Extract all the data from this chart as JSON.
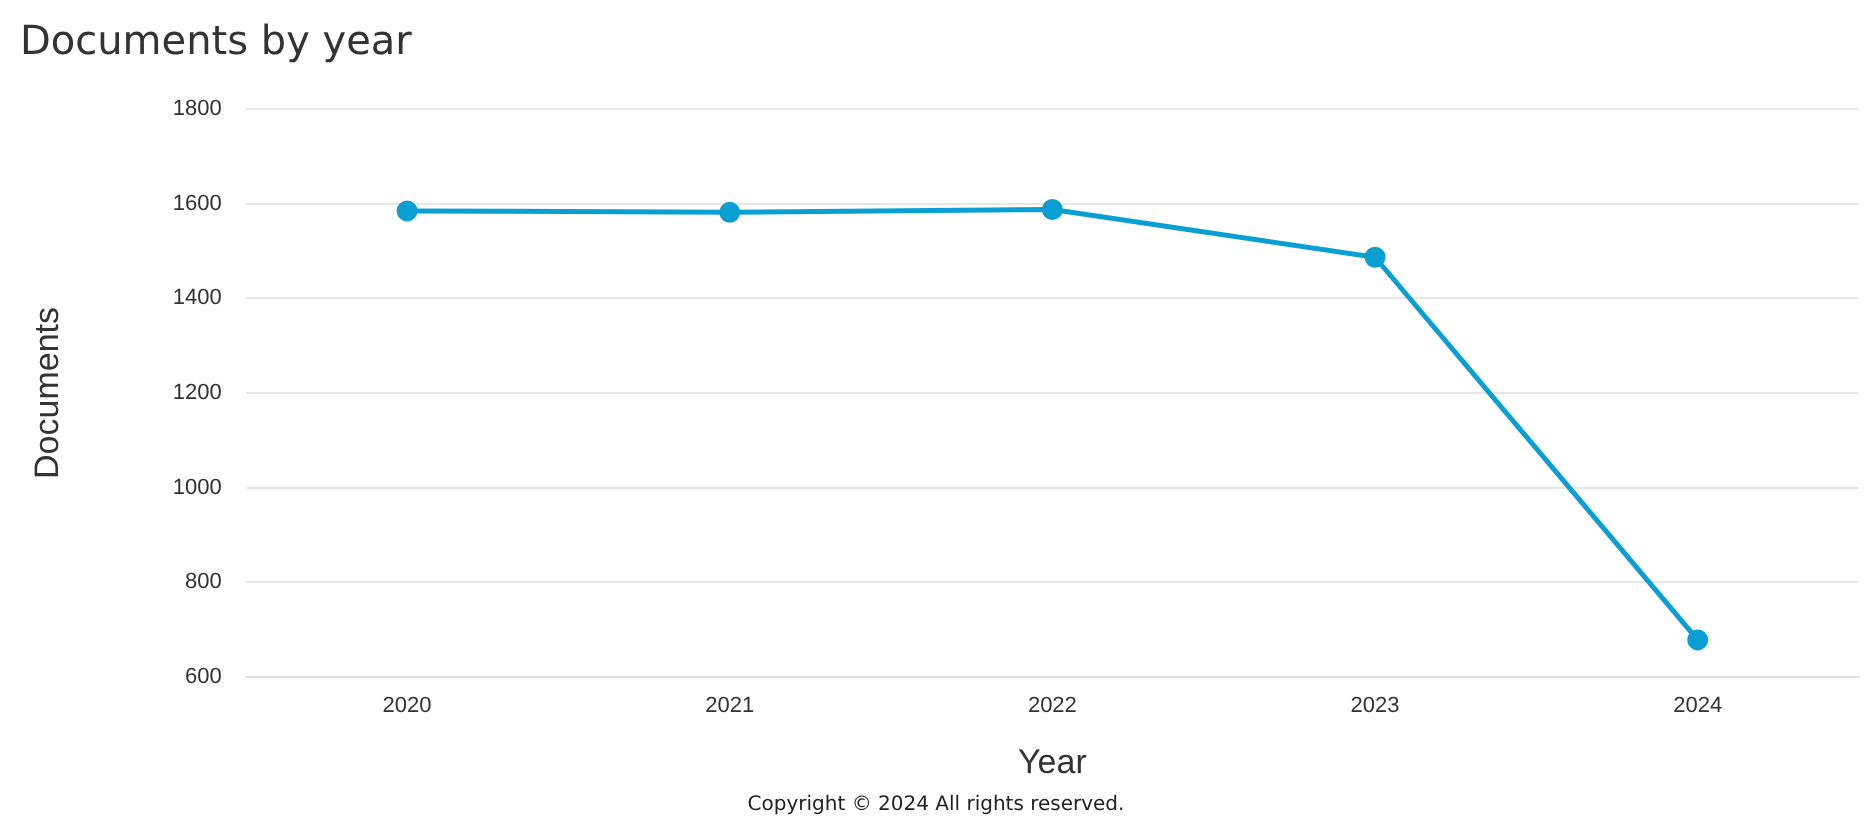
{
  "chart_data": {
    "type": "line",
    "title": "Documents by year",
    "xlabel": "Year",
    "ylabel": "Documents",
    "categories": [
      "2020",
      "2021",
      "2022",
      "2023",
      "2024"
    ],
    "series": [
      {
        "color": "#0a9fd3",
        "values": [
          1585,
          1582,
          1588,
          1487,
          678
        ]
      }
    ],
    "ylim": [
      600,
      1800
    ],
    "yticks": [
      600,
      800,
      1000,
      1200,
      1400,
      1600,
      1800
    ],
    "grid": "y",
    "legend": false,
    "marker": "circle",
    "line_style": "solid",
    "annotations": [
      "Copyright © 2024 All rights reserved."
    ]
  }
}
